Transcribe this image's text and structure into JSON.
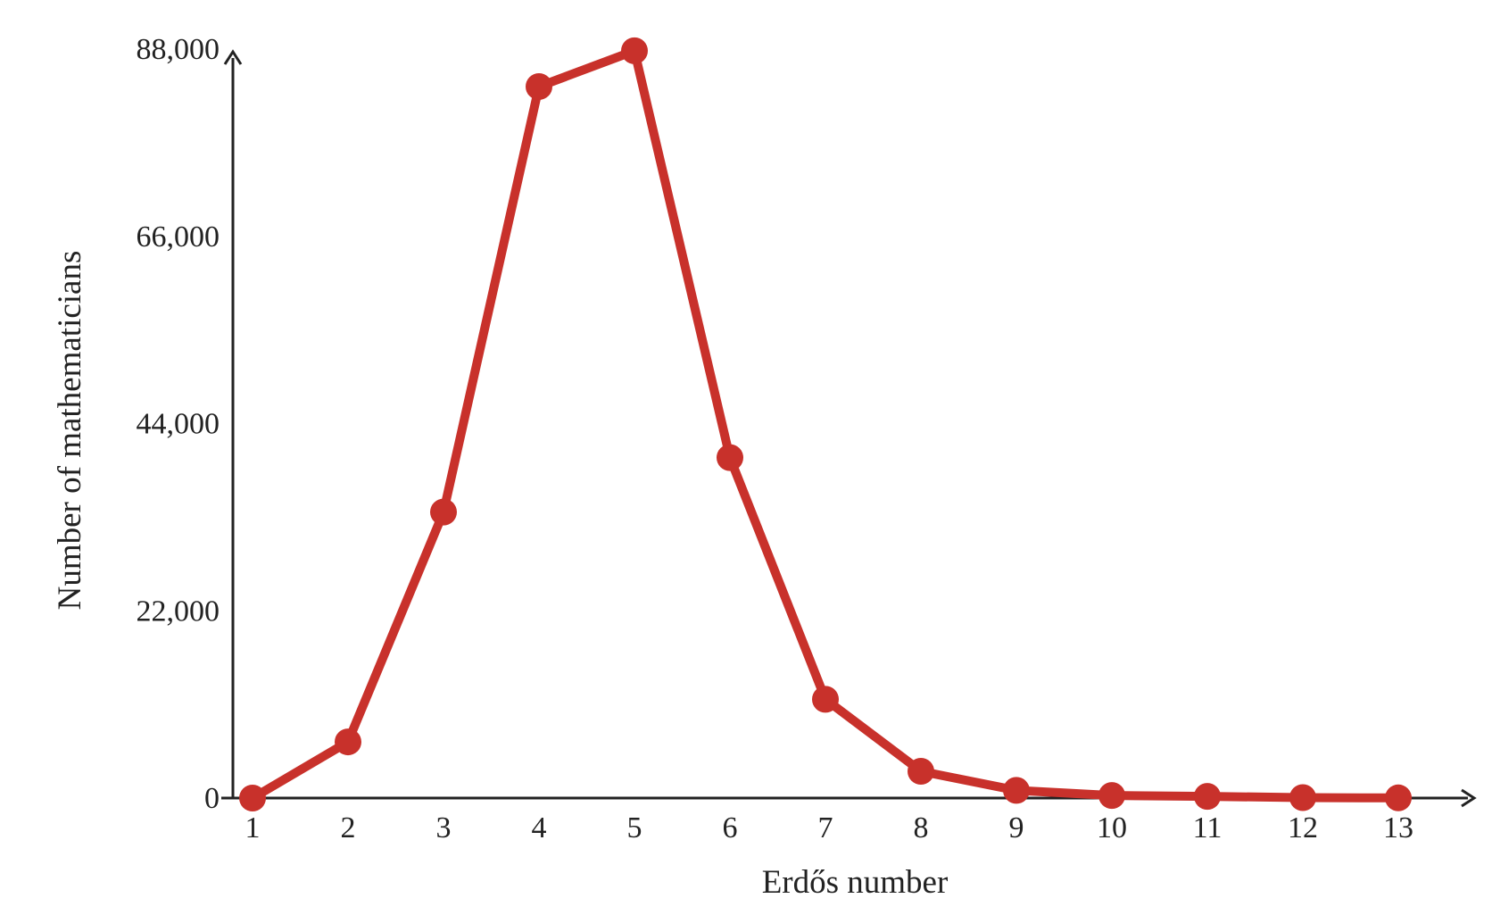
{
  "chart_data": {
    "type": "line",
    "title": "",
    "xlabel": "Erdős number",
    "ylabel": "Number of mathematicians",
    "x": [
      1,
      2,
      3,
      4,
      5,
      6,
      7,
      8,
      9,
      10,
      11,
      12,
      13
    ],
    "series": [
      {
        "values": [
          0,
          6600,
          33600,
          83600,
          87800,
          40000,
          11600,
          3150,
          900,
          300,
          200,
          50,
          20
        ]
      }
    ],
    "y_ticks": [
      0,
      22000,
      44000,
      66000,
      88000
    ],
    "y_tick_labels": [
      "0",
      "22,000",
      "44,000",
      "66,000",
      "88,000"
    ],
    "x_tick_labels": [
      "1",
      "2",
      "3",
      "4",
      "5",
      "6",
      "7",
      "8",
      "9",
      "10",
      "11",
      "12",
      "13"
    ],
    "ylim": [
      0,
      88000
    ],
    "xlim": [
      1,
      13
    ],
    "grid": false,
    "legend": "none",
    "colors": {
      "series": "#c8312b",
      "axis": "#222222",
      "text": "#222222"
    }
  }
}
